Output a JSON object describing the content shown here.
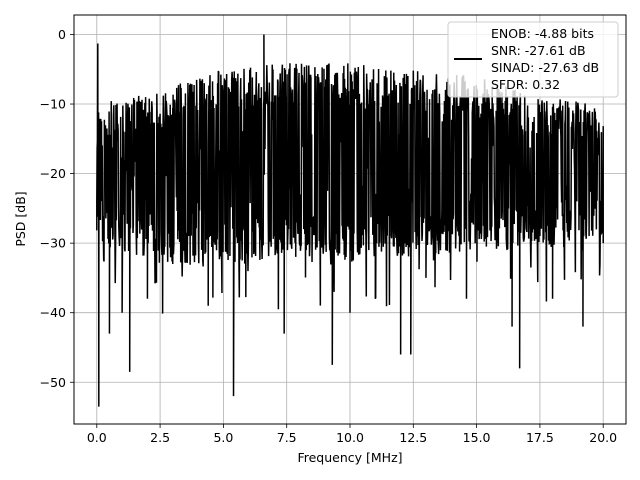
{
  "chart_data": {
    "type": "line",
    "title": "",
    "xlabel": "Frequency [MHz]",
    "ylabel": "PSD [dB]",
    "xlim": [
      -0.9,
      20.9
    ],
    "ylim": [
      -56,
      2.8
    ],
    "x_ticks": [
      0.0,
      2.5,
      5.0,
      7.5,
      10.0,
      12.5,
      15.0,
      17.5,
      20.0
    ],
    "x_tick_labels": [
      "0.0",
      "2.5",
      "5.0",
      "7.5",
      "10.0",
      "12.5",
      "15.0",
      "17.5",
      "20.0"
    ],
    "y_ticks": [
      0,
      -10,
      -20,
      -30,
      -40,
      -50
    ],
    "y_tick_labels": [
      "0",
      "−10",
      "−20",
      "−30",
      "−40",
      "−50"
    ],
    "grid": true,
    "legend_position": "top-right",
    "series": [
      {
        "name": "ENOB: -4.88 bits\nSNR: -27.61 dB\nSINAD: -27.63 dB\nSFDR: 0.32",
        "color": "#000000",
        "description_points": {
          "x": [
            0.0,
            0.04,
            0.08,
            0.12,
            0.5,
            1.0,
            1.3,
            2.0,
            3.0,
            4.4,
            5.4,
            6.6,
            7.4,
            9.3,
            10.0,
            11.0,
            12.0,
            12.4,
            13.0,
            14.6,
            16.4,
            16.7,
            18.0,
            19.2,
            20.0
          ],
          "y": [
            -24,
            -1.3,
            -53.5,
            -14,
            -43,
            -40,
            -48.5,
            -38,
            -33,
            -39,
            -52,
            0.0,
            -43,
            -47.5,
            -40,
            -38,
            -46,
            -46,
            -35,
            -38,
            -42,
            -48,
            -38,
            -42,
            -30
          ]
        },
        "noise_band": {
          "upper_edge_x": [
            0.0,
            2.5,
            5.0,
            7.5,
            10.0,
            12.5,
            15.0,
            17.5,
            20.0
          ],
          "upper_edge_y": [
            -10,
            -8,
            -5,
            -4,
            -4,
            -5,
            -6,
            -9,
            -10
          ],
          "lower_edge_y": [
            -30,
            -33,
            -33,
            -32,
            -32,
            -32,
            -31,
            -31,
            -29
          ]
        }
      }
    ]
  },
  "legend": {
    "line_color": "#000000",
    "lines": [
      "ENOB: -4.88 bits",
      "SNR: -27.61 dB",
      "SINAD: -27.63 dB",
      "SFDR: 0.32"
    ]
  }
}
